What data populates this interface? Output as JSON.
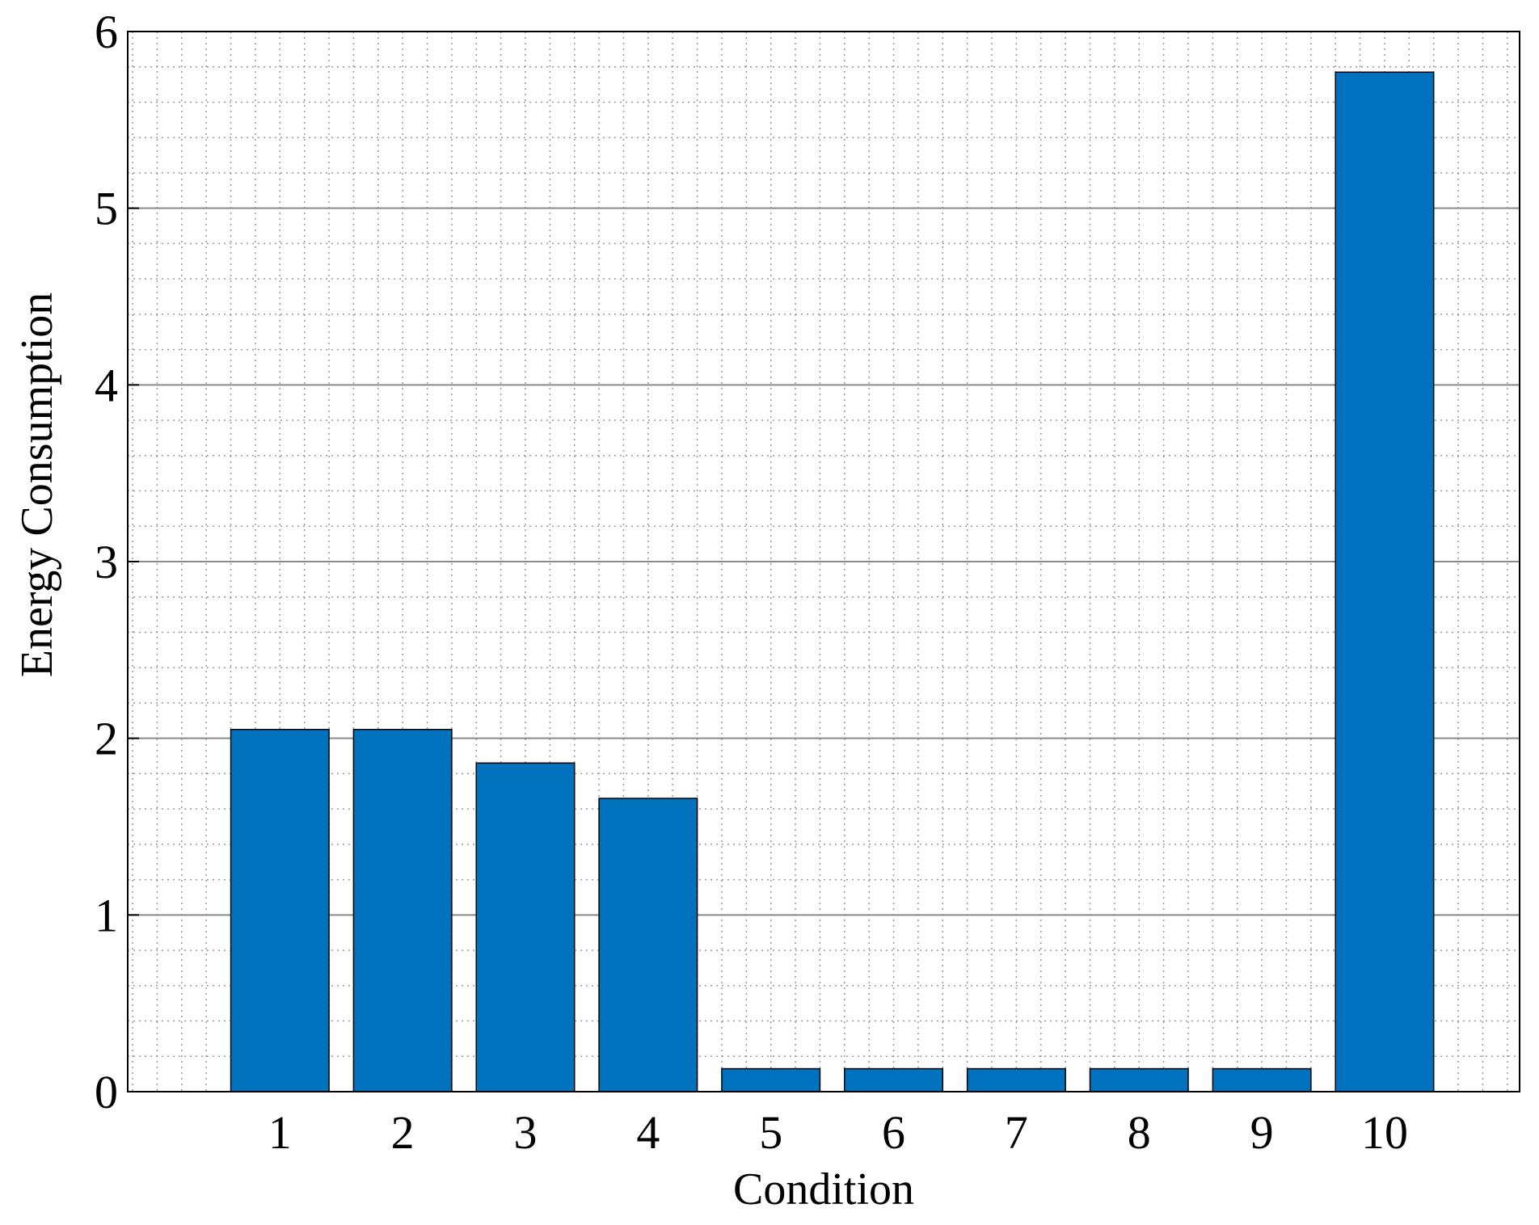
{
  "chart_data": {
    "type": "bar",
    "x_label": "Condition",
    "y_label": "Energy Consumption",
    "x": [
      1,
      2,
      3,
      4,
      5,
      6,
      7,
      8,
      9,
      10
    ],
    "values": [
      2.05,
      2.05,
      1.86,
      1.66,
      0.13,
      0.13,
      0.13,
      0.13,
      0.13,
      5.77
    ],
    "color": "#0072bd",
    "xlim": [
      -0.24,
      11.1
    ],
    "xticks": [
      1,
      2,
      3,
      4,
      5,
      6,
      7,
      8,
      9,
      10
    ],
    "ylim": [
      0,
      6
    ],
    "yticks": [
      0,
      1,
      2,
      3,
      4,
      5,
      6
    ],
    "grid": true,
    "minor_grid": true
  }
}
